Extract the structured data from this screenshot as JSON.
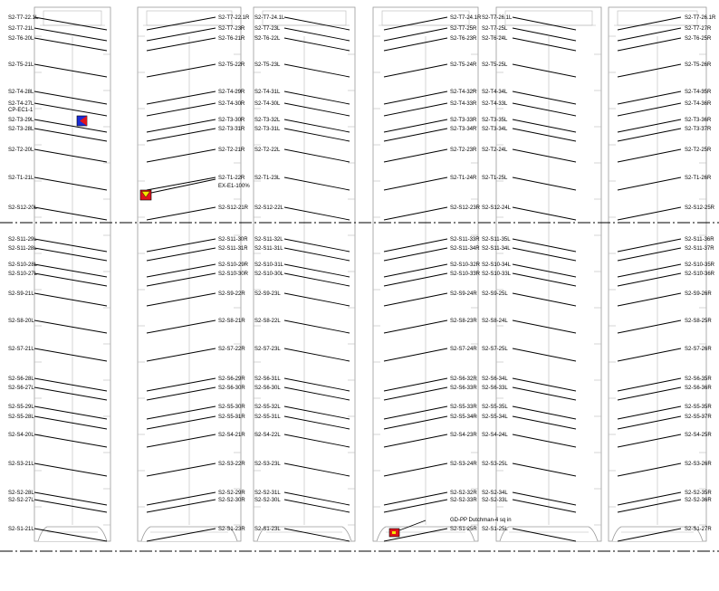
{
  "labels": {
    "c1": [
      "S2-T7-22.1L",
      "S2-T7-21L",
      "S2-T6-20L",
      "S2-T5-21L",
      "S2-T4-28L",
      "S2-T4-27L",
      "CP-EC1-1",
      "S2-T3-29L",
      "S2-T3-28L",
      "S2-T2-20L",
      "S2-T1-21L",
      "S2-S12-20L",
      "S2-S11-29L",
      "S2-S11-28L",
      "S2-S10-28L",
      "S2-S10-27L",
      "S2-S9-21L",
      "S2-S8-20L",
      "S2-S7-21L",
      "S2-S6-28L",
      "S2-S6-27L",
      "S2-S5-29L",
      "S2-S5-28L",
      "S2-S4-20L",
      "S2-S3-21L",
      "S2-S2-28L",
      "S2-S2-27L",
      "S2-S1-21L"
    ],
    "c2": [
      "S2-T7-22.1R",
      "S2-T7-23R",
      "S2-T6-21R",
      "S2-T5-22R",
      "S2-T4-29R",
      "S2-T4-30R",
      "S2-T3-30R",
      "S2-T3-31R",
      "S2-T2-21R",
      "S2-T1-22R",
      "EX-E1-100%",
      "S2-S12-21R",
      "S2-S11-30R",
      "S2-S11-31R",
      "S2-S10-29R",
      "S2-S10-30R",
      "S2-S9-22R",
      "S2-S8-21R",
      "S2-S7-22R",
      "S2-S6-29R",
      "S2-S6-30R",
      "S2-S5-30R",
      "S2-S5-31R",
      "S2-S4-21R",
      "S2-S3-22R",
      "S2-S2-29R",
      "S2-S2-30R",
      "S2-S1-23R"
    ],
    "c3": [
      "S2-T7-24.1L",
      "S2-T7-23L",
      "S2-T6-22L",
      "S2-T5-23L",
      "S2-T4-31L",
      "S2-T4-30L",
      "S2-T3-32L",
      "S2-T3-31L",
      "S2-T2-22L",
      "S2-T1-23L",
      "S2-S12-22L",
      "S2-S11-32L",
      "S2-S11-31L",
      "S2-S10-31L",
      "S2-S10-30L",
      "S2-S9-23L",
      "S2-S8-22L",
      "S2-S7-23L",
      "S2-S6-31L",
      "S2-S6-30L",
      "S2-S5-32L",
      "S2-S5-31L",
      "S2-S4-22L",
      "S2-S3-23L",
      "S2-S2-31L",
      "S2-S2-30L",
      "S2-S1-23L"
    ],
    "c4": [
      "S2-T7-24.1R",
      "S2-T7-25R",
      "S2-T6-23R",
      "S2-T5-24R",
      "S2-T4-32R",
      "S2-T4-33R",
      "S2-T3-33R",
      "S2-T3-34R",
      "S2-T2-23R",
      "S2-T1-24R",
      "S2-S12-23R",
      "S2-S11-33R",
      "S2-S11-34R",
      "S2-S10-32R",
      "S2-S10-33R",
      "S2-S9-24R",
      "S2-S8-23R",
      "S2-S7-24R",
      "S2-S6-32R",
      "S2-S6-33R",
      "S2-S5-33R",
      "S2-S5-34R",
      "S2-S4-23R",
      "S2-S3-24R",
      "S2-S2-32R",
      "S2-S2-33R",
      "S2-S1-25R",
      "GD-PP Dutchman-4 sq in"
    ],
    "c5": [
      "S2-T7-26.1L",
      "S2-T7-25L",
      "S2-T6-24L",
      "S2-T5-25L",
      "S2-T4-34L",
      "S2-T4-33L",
      "S2-T3-35L",
      "S2-T3-34L",
      "S2-T2-24L",
      "S2-T1-25L",
      "S2-S12-24L",
      "S2-S11-35L",
      "S2-S11-34L",
      "S2-S10-34L",
      "S2-S10-33L",
      "S2-S9-25L",
      "S2-S8-24L",
      "S2-S7-25L",
      "S2-S6-34L",
      "S2-S6-33L",
      "S2-S5-35L",
      "S2-S5-34L",
      "S2-S4-24L",
      "S2-S3-25L",
      "S2-S2-34L",
      "S2-S2-33L",
      "S2-S1-25L"
    ],
    "c6": [
      "S2-T7-26.1R",
      "S2-T7-27R",
      "S2-T6-25R",
      "S2-T5-26R",
      "S2-T4-35R",
      "S2-T4-36R",
      "S2-T3-36R",
      "S2-T3-37R",
      "S2-T2-25R",
      "S2-T1-26R",
      "S2-S12-25R",
      "S2-S11-36R",
      "S2-S11-37R",
      "S2-S10-35R",
      "S2-S10-36R",
      "S2-S9-26R",
      "S2-S8-25R",
      "S2-S7-26R",
      "S2-S6-35R",
      "S2-S6-36R",
      "S2-S5-35R",
      "S2-S5-37R",
      "S2-S4-25R",
      "S2-S3-26R",
      "S2-S2-35R",
      "S2-S2-36R",
      "S2-S1-27R"
    ]
  },
  "markers": [
    {
      "name": "blue-flag-marker",
      "colors": [
        "#1a2bd6",
        "#e0141c"
      ]
    },
    {
      "name": "yellow-triangle-marker",
      "colors": [
        "#e0141c",
        "#f2e600"
      ]
    },
    {
      "name": "red-square-marker",
      "colors": [
        "#e0141c",
        "#f2e600"
      ]
    }
  ]
}
